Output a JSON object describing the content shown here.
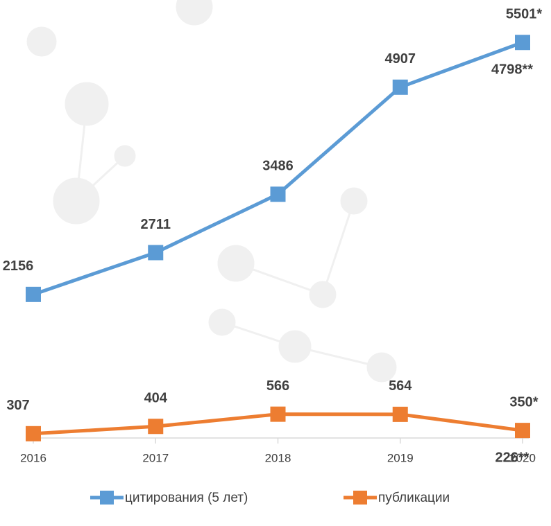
{
  "chart_data": {
    "type": "line",
    "categories": [
      "2016",
      "2017",
      "2018",
      "2019",
      "2020"
    ],
    "series": [
      {
        "name": "цитирования (5 лет)",
        "color": "#5b9bd5",
        "values": [
          2156,
          2711,
          3486,
          4907,
          5501
        ],
        "value_labels": [
          "2156",
          "2711",
          "3486",
          "4907",
          "5501*"
        ]
      },
      {
        "name": "публикации",
        "color": "#ed7d31",
        "values": [
          307,
          404,
          566,
          564,
          350
        ],
        "value_labels": [
          "307",
          "404",
          "566",
          "564",
          "350*"
        ]
      }
    ],
    "annotations": [
      "4798**",
      "226**"
    ],
    "ylim": [
      250,
      6000
    ],
    "legend": "bottom"
  }
}
